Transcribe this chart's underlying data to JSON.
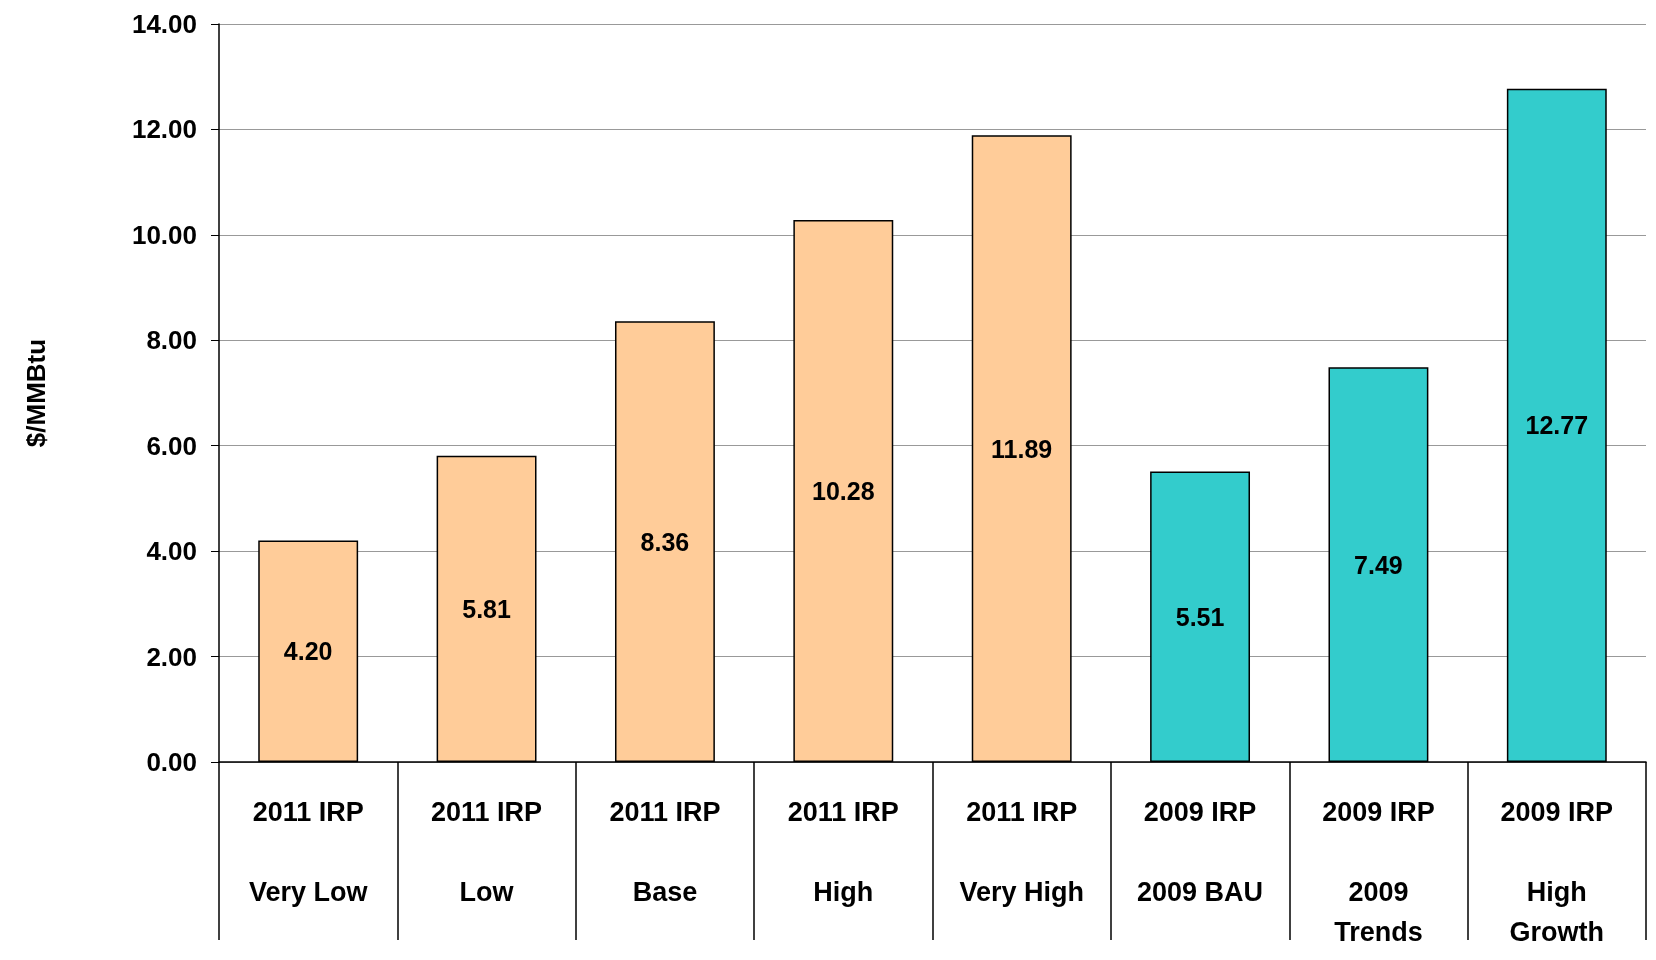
{
  "chart_data": {
    "type": "bar",
    "ylabel": "$/MMBtu",
    "categories": [
      "2011 IRP\nVery Low",
      "2011 IRP\nLow",
      "2011 IRP\nBase",
      "2011 IRP\nHigh",
      "2011 IRP\nVery High",
      "2009 IRP\n2009 BAU",
      "2009 IRP\n2009\nTrends",
      "2009 IRP\nHigh\nGrowth"
    ],
    "values": [
      4.2,
      5.81,
      8.36,
      10.28,
      11.89,
      5.51,
      7.49,
      12.77
    ],
    "value_labels": [
      "4.20",
      "5.81",
      "8.36",
      "10.28",
      "11.89",
      "5.51",
      "7.49",
      "12.77"
    ],
    "colors": [
      "#ffcc99",
      "#ffcc99",
      "#ffcc99",
      "#ffcc99",
      "#ffcc99",
      "#33cccc",
      "#33cccc",
      "#33cccc"
    ],
    "ylim": [
      0,
      14
    ],
    "yticks": [
      {
        "value": 0,
        "label": "0.00"
      },
      {
        "value": 2,
        "label": "2.00"
      },
      {
        "value": 4,
        "label": "4.00"
      },
      {
        "value": 6,
        "label": "6.00"
      },
      {
        "value": 8,
        "label": "8.00"
      },
      {
        "value": 10,
        "label": "10.00"
      },
      {
        "value": 12,
        "label": "12.00"
      },
      {
        "value": 14,
        "label": "14.00"
      }
    ],
    "grid": "y"
  }
}
